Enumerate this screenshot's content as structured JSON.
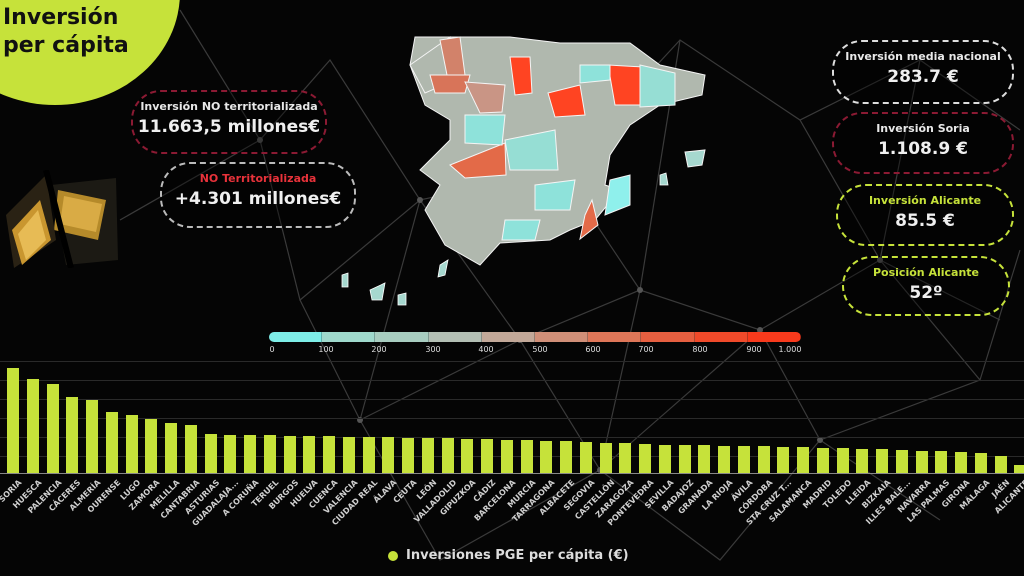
{
  "title": {
    "line1": "Inversión",
    "line2": "per cápita"
  },
  "kpis": {
    "no_territorializada": {
      "label": "Inversión NO territorializada",
      "value": "11.663,5 millones€"
    },
    "no_territorializada_delta": {
      "label": "NO Territorializada",
      "value": "+4.301 millones€"
    },
    "media_nacional": {
      "label": "Inversión media nacional",
      "value": "283.7 €"
    },
    "soria": {
      "label": "Inversión Soria",
      "value": "1.108.9 €"
    },
    "alicante": {
      "label": "Inversión Alicante",
      "value": "85.5 €"
    },
    "posicion_alicante": {
      "label": "Posición Alicante",
      "value": "52º"
    }
  },
  "colors": {
    "accent": "#c6e23a",
    "red_border": "#8b1a33",
    "scale_low": "#7eeee8",
    "scale_high": "#ff3b1a",
    "label_red": "#e8323a"
  },
  "map_scale": {
    "ticks": [
      "0",
      "100",
      "200",
      "300",
      "400",
      "500",
      "600",
      "700",
      "800",
      "900",
      "1.000"
    ],
    "colors": [
      "#7eeee8",
      "#9fd9cc",
      "#a8cdc0",
      "#b3bfb4",
      "#c2a898",
      "#d08f78",
      "#de7658",
      "#e65f40",
      "#f04a2a",
      "#f83a1c"
    ]
  },
  "legend": {
    "label": "Inversiones PGE per cápita (€)"
  },
  "chart_data": {
    "type": "bar",
    "title": "",
    "xlabel": "",
    "ylabel": "",
    "legend": [
      "Inversiones PGE per cápita (€)"
    ],
    "legend_position": "bottom",
    "grid": true,
    "ylim": [
      0,
      1200
    ],
    "categories": [
      "SORIA",
      "HUESCA",
      "PALENCIA",
      "CÁCERES",
      "ALMERÍA",
      "OURENSE",
      "LUGO",
      "ZAMORA",
      "MELILLA",
      "CANTABRIA",
      "ASTURIAS",
      "GUADALAJA...",
      "A CORUÑA",
      "TERUEL",
      "BURGOS",
      "HUELVA",
      "CUENCA",
      "VALENCIA",
      "CIUDAD REAL",
      "ÁLAVA",
      "CEUTA",
      "LEÓN",
      "VALLADOLID",
      "GIPUZKOA",
      "CÁDIZ",
      "BARCELONA",
      "MURCIA",
      "TARRAGONA",
      "ALBACETE",
      "SEGOVIA",
      "CASTELLÓN",
      "ZARAGOZA",
      "PONTEVEDRA",
      "SEVILLA",
      "BADAJOZ",
      "GRANADA",
      "LA RIOJA",
      "ÁVILA",
      "CÓRDOBA",
      "STA CRUZ T...",
      "SALAMANCA",
      "MADRID",
      "TOLEDO",
      "LLEIDA",
      "BIZKAIA",
      "ILLES BALE...",
      "NAVARRA",
      "LAS PALMAS",
      "GIRONA",
      "MÁLAGA",
      "JAÉN",
      "ALICANTE"
    ],
    "values": [
      1108.9,
      990,
      935,
      800,
      770,
      640,
      610,
      570,
      525,
      505,
      415,
      400,
      400,
      400,
      395,
      390,
      390,
      385,
      380,
      375,
      370,
      365,
      365,
      360,
      355,
      350,
      345,
      340,
      335,
      330,
      320,
      315,
      310,
      300,
      300,
      295,
      290,
      285,
      280,
      275,
      270,
      265,
      260,
      255,
      250,
      240,
      235,
      230,
      225,
      215,
      180,
      85.5
    ]
  }
}
